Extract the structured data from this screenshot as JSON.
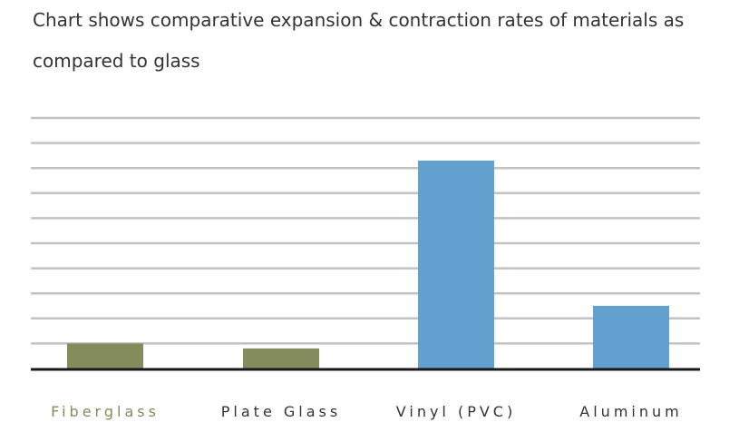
{
  "chart_data": {
    "type": "bar",
    "title_lines": [
      "Chart shows comparative expansion & contraction rates of materials as",
      "compared to glass"
    ],
    "categories": [
      "Fiberglass",
      "Plate Glass",
      "Vinyl (PVC)",
      "Aluminum"
    ],
    "values": [
      1.0,
      0.8,
      8.3,
      2.5
    ],
    "ylim": [
      0,
      10
    ],
    "y_gridlines": 10,
    "y_tick_labels_shown": false,
    "xlabel": "",
    "ylabel": "",
    "legend": "none",
    "grid": true,
    "colors": {
      "bars": [
        "#848c5c",
        "#848c5c",
        "#62a0cf",
        "#62a0cf"
      ],
      "labels": [
        "#848c5c",
        "#333333",
        "#333333",
        "#333333"
      ],
      "gridline": "#c2c2c2",
      "baseline": "#1a1a1a"
    }
  }
}
